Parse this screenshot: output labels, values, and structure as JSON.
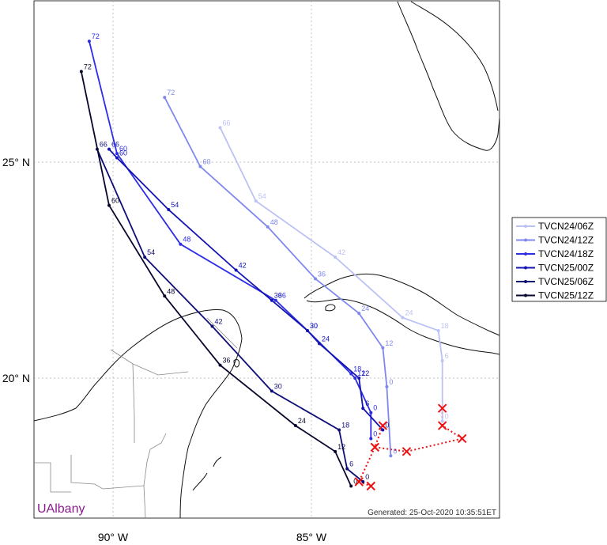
{
  "map": {
    "axes": {
      "lon_ticks": [
        {
          "lon": -90,
          "label": "90° W"
        },
        {
          "lon": -85,
          "label": "85° W"
        }
      ],
      "lat_ticks": [
        {
          "lat": 25,
          "label": "25° N"
        },
        {
          "lat": 20,
          "label": "20° N"
        }
      ]
    },
    "branding": {
      "text": "UAlbany",
      "color": "#8b1a8b"
    },
    "generated": "Generated: 25-Oct-2020 10:35:51ET"
  },
  "chart_data": {
    "type": "scatter",
    "projection": "lat-lon",
    "grid": true,
    "legend_position": "right",
    "lon_range": [
      -91.8,
      -78.5
    ],
    "lat_range": [
      15.4,
      29.1
    ],
    "series": [
      {
        "name": "TVCN24/06Z",
        "color": "#bcc2f4",
        "points": [
          {
            "h": 0,
            "lon": -81.7,
            "lat": 19.0
          },
          {
            "h": 6,
            "lon": -81.7,
            "lat": 20.4
          },
          {
            "h": 18,
            "lon": -81.8,
            "lat": 21.1
          },
          {
            "h": 24,
            "lon": -82.7,
            "lat": 21.4
          },
          {
            "h": 42,
            "lon": -84.4,
            "lat": 22.8
          },
          {
            "h": 54,
            "lon": -86.4,
            "lat": 24.1
          },
          {
            "h": 66,
            "lon": -87.3,
            "lat": 25.8
          }
        ]
      },
      {
        "name": "TVCN24/12Z",
        "color": "#7f87ee",
        "points": [
          {
            "h": 0,
            "lon": -83.0,
            "lat": 18.2
          },
          {
            "h": 0,
            "lon": -83.1,
            "lat": 19.8
          },
          {
            "h": 12,
            "lon": -83.2,
            "lat": 20.7
          },
          {
            "h": 24,
            "lon": -83.8,
            "lat": 21.5
          },
          {
            "h": 36,
            "lon": -84.9,
            "lat": 22.3
          },
          {
            "h": 48,
            "lon": -86.1,
            "lat": 23.5
          },
          {
            "h": 60,
            "lon": -87.8,
            "lat": 24.9
          },
          {
            "h": 72,
            "lon": -88.7,
            "lat": 26.5
          }
        ]
      },
      {
        "name": "TVCN24/18Z",
        "color": "#2d2de6",
        "points": [
          {
            "h": 0,
            "lon": -83.5,
            "lat": 18.6
          },
          {
            "h": 0,
            "lon": -83.5,
            "lat": 19.2
          },
          {
            "h": 12,
            "lon": -83.9,
            "lat": 20.0
          },
          {
            "h": 18,
            "lon": -84.0,
            "lat": 20.1
          },
          {
            "h": 30,
            "lon": -85.1,
            "lat": 21.1
          },
          {
            "h": 36,
            "lon": -85.9,
            "lat": 21.8
          },
          {
            "h": 48,
            "lon": -88.3,
            "lat": 23.1
          },
          {
            "h": 60,
            "lon": -89.9,
            "lat": 25.2
          },
          {
            "h": 72,
            "lon": -90.6,
            "lat": 27.8
          }
        ]
      },
      {
        "name": "TVCN25/00Z",
        "color": "#1414b4",
        "points": [
          {
            "h": 0,
            "lon": -83.2,
            "lat": 18.8
          },
          {
            "h": 6,
            "lon": -83.7,
            "lat": 19.3
          },
          {
            "h": 12,
            "lon": -83.8,
            "lat": 20.0
          },
          {
            "h": 24,
            "lon": -84.8,
            "lat": 20.8
          },
          {
            "h": 30,
            "lon": -85.1,
            "lat": 21.1
          },
          {
            "h": 36,
            "lon": -86.0,
            "lat": 21.8
          },
          {
            "h": 42,
            "lon": -86.9,
            "lat": 22.5
          },
          {
            "h": 54,
            "lon": -88.6,
            "lat": 23.9
          },
          {
            "h": 60,
            "lon": -89.9,
            "lat": 25.1
          },
          {
            "h": 66,
            "lon": -90.1,
            "lat": 25.3
          }
        ]
      },
      {
        "name": "TVCN25/06Z",
        "color": "#0e0e78",
        "points": [
          {
            "h": 0,
            "lon": -83.7,
            "lat": 17.6
          },
          {
            "h": 6,
            "lon": -84.1,
            "lat": 17.9
          },
          {
            "h": 18,
            "lon": -84.3,
            "lat": 18.8
          },
          {
            "h": 30,
            "lon": -86.0,
            "lat": 19.7
          },
          {
            "h": 42,
            "lon": -87.5,
            "lat": 21.2
          },
          {
            "h": 54,
            "lon": -89.2,
            "lat": 22.8
          },
          {
            "h": 66,
            "lon": -90.4,
            "lat": 25.3
          }
        ]
      },
      {
        "name": "TVCN25/12Z",
        "color": "#07072e",
        "points": [
          {
            "h": 0,
            "lon": -84.0,
            "lat": 17.5
          },
          {
            "h": 12,
            "lon": -84.4,
            "lat": 18.3
          },
          {
            "h": 24,
            "lon": -85.4,
            "lat": 18.9
          },
          {
            "h": 36,
            "lon": -87.3,
            "lat": 20.3
          },
          {
            "h": 48,
            "lon": -88.7,
            "lat": 21.9
          },
          {
            "h": 60,
            "lon": -90.1,
            "lat": 24.0
          },
          {
            "h": 72,
            "lon": -90.8,
            "lat": 27.1
          }
        ]
      }
    ],
    "initial_positions": [
      {
        "lon": -83.2,
        "lat": 18.9
      },
      {
        "lon": -83.4,
        "lat": 18.4
      },
      {
        "lon": -82.6,
        "lat": 18.3
      },
      {
        "lon": -81.2,
        "lat": 18.6
      },
      {
        "lon": -81.7,
        "lat": 18.9
      },
      {
        "lon": -81.7,
        "lat": 19.3
      },
      {
        "lon": -83.8,
        "lat": 17.6
      },
      {
        "lon": -83.5,
        "lat": 17.5
      }
    ],
    "initial_marker_color": "#ee1111",
    "initial_line_order": [
      [
        0,
        1
      ],
      [
        1,
        2
      ],
      [
        2,
        3
      ],
      [
        3,
        4
      ],
      [
        4,
        5
      ],
      [
        1,
        6
      ],
      [
        6,
        7
      ]
    ]
  }
}
